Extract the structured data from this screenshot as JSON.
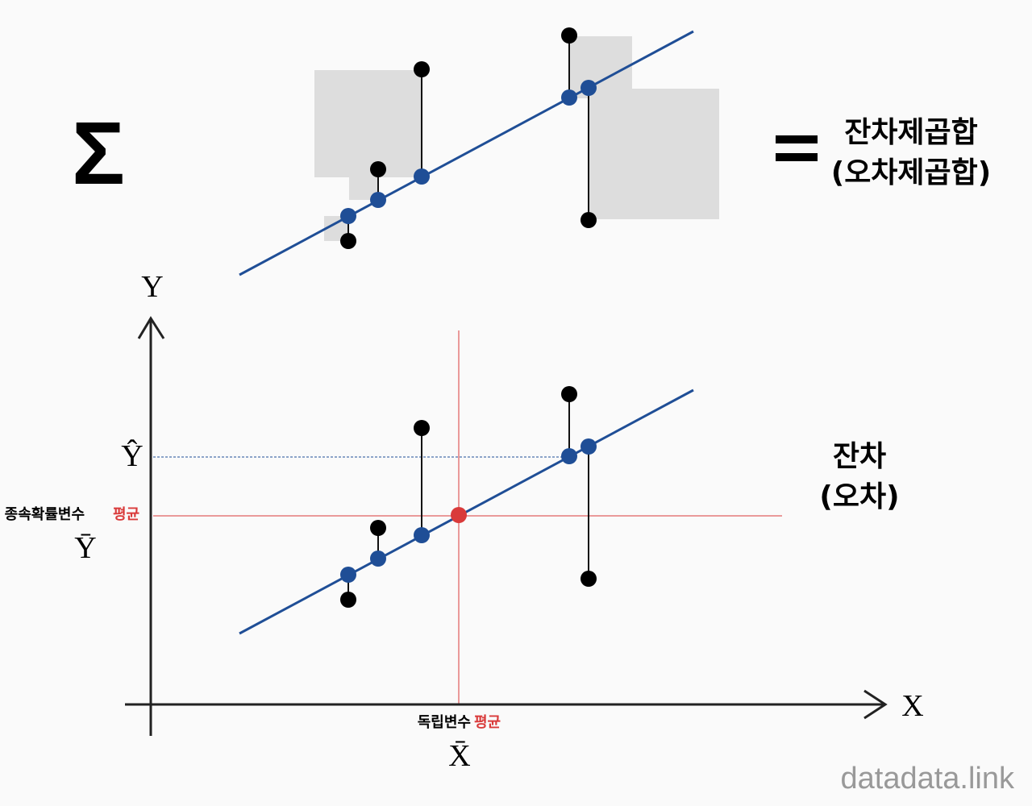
{
  "top": {
    "symbol": "Σ",
    "label_line1": "잔차제곱합",
    "label_line2": "(오차제곱합)"
  },
  "axes": {
    "y": "Y",
    "x": "X"
  },
  "y_hat": "Ŷ",
  "y_mean": {
    "caption": "종속확률변수",
    "highlight": "평균",
    "symbol": "Ȳ"
  },
  "residual": {
    "line1": "잔차",
    "line2": "(오차)"
  },
  "x_mean": {
    "caption": "독립변수",
    "highlight": "평균",
    "symbol": "X̄"
  },
  "watermark": "datadata.link"
}
